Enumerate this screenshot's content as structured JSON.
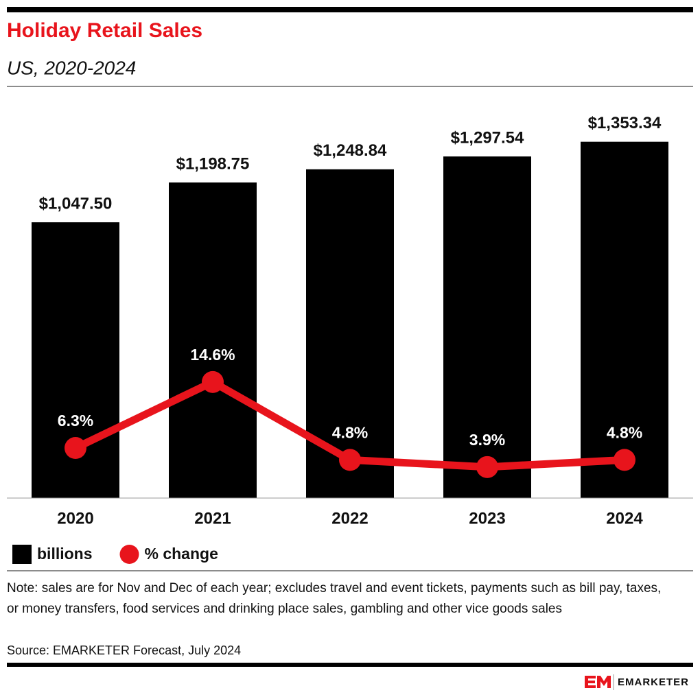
{
  "chart_data": {
    "type": "bar",
    "title": "Holiday Retail Sales",
    "subtitle": "US, 2020-2024",
    "categories": [
      "2020",
      "2021",
      "2022",
      "2023",
      "2024"
    ],
    "series": [
      {
        "name": "billions",
        "color": "#000000",
        "values": [
          1047.5,
          1198.75,
          1248.84,
          1297.54,
          1353.34
        ],
        "value_labels": [
          "$1,047.50",
          "$1,198.75",
          "$1,248.84",
          "$1,297.54",
          "$1,353.34"
        ]
      },
      {
        "name": "% change",
        "type": "line",
        "axis": "y2",
        "color": "#e8141c",
        "values": [
          6.3,
          14.6,
          4.8,
          3.9,
          4.8
        ],
        "value_labels": [
          "6.3%",
          "14.6%",
          "4.8%",
          "3.9%",
          "4.8%"
        ]
      }
    ],
    "ylim": [
      0,
      1600
    ],
    "y2lim": [
      0,
      53
    ],
    "note": "Note: sales are for Nov and Dec of each year; excludes travel and event tickets, payments such as bill pay, taxes, or money transfers, food services and drinking place sales, gambling and other vice goods sales",
    "source": "Source: EMARKETER Forecast, July 2024",
    "brand": "EMARKETER"
  }
}
